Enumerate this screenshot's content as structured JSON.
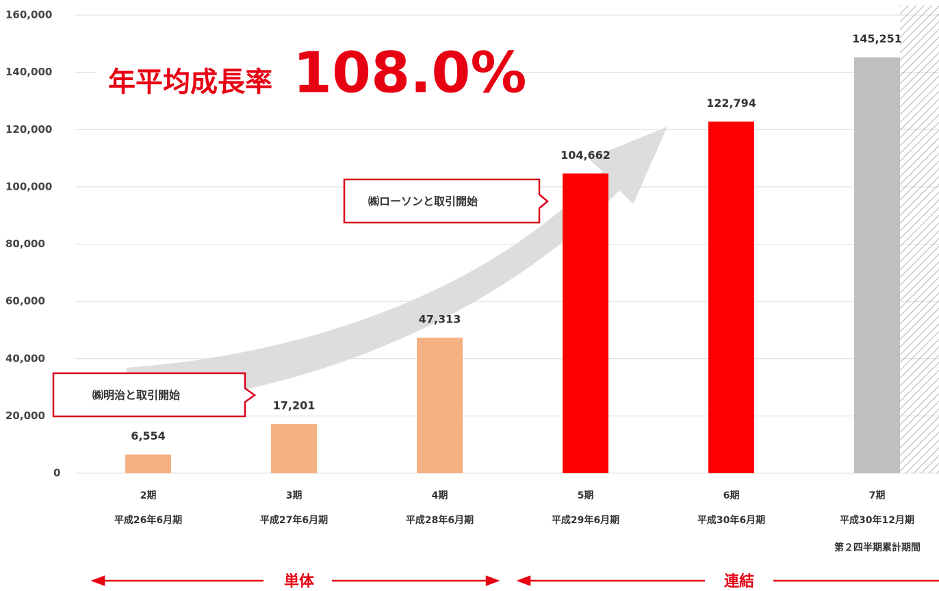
{
  "chart_data": {
    "type": "bar",
    "headline": "年平均成長率",
    "headline_value": "108.0%",
    "categories": [
      "2期",
      "3期",
      "4期",
      "5期",
      "6期",
      "7期"
    ],
    "sublabels": [
      "平成26年6月期",
      "平成27年6月期",
      "平成28年6月期",
      "平成29年6月期",
      "平成30年6月期",
      "平成30年12月期"
    ],
    "extra_label": "第２四半期累計期間",
    "values": [
      6554,
      17201,
      47313,
      104662,
      122794,
      145251
    ],
    "value_labels": [
      "6,554",
      "17,201",
      "47,313",
      "104,662",
      "122,794",
      "145,251"
    ],
    "colors": [
      "#f4b183",
      "#f4b183",
      "#f4b183",
      "#ff0000",
      "#ff0000",
      "#bfbfbf"
    ],
    "ylim": [
      0,
      160000
    ],
    "yticks": [
      0,
      {
        "value": 20000,
        "label": "20,000"
      },
      {
        "value": 40000,
        "label": "40,000"
      },
      {
        "value": 60000,
        "label": "60,000"
      },
      {
        "value": 80000,
        "label": "80,000"
      },
      {
        "value": 100000,
        "label": "100,000"
      },
      {
        "value": 120000,
        "label": "120,000"
      },
      {
        "value": 140000,
        "label": "140,000"
      },
      {
        "value": 160000,
        "label": "160,000"
      }
    ],
    "grid": true,
    "callouts": [
      "㈱明治と取引開始",
      "㈱ローソンと取引開始"
    ],
    "segments": [
      "単体",
      "連結"
    ]
  }
}
